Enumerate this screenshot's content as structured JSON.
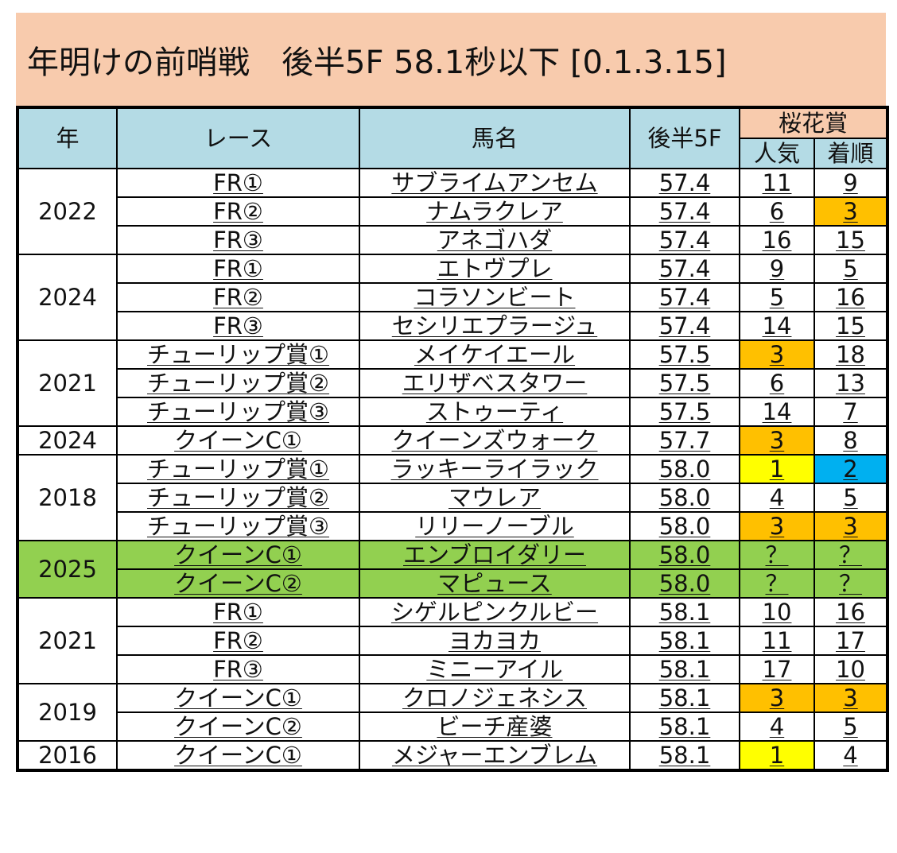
{
  "title": "年明けの前哨戦　後半5F 58.1秒以下 [0.1.3.15]",
  "headers": {
    "year": "年",
    "race": "レース",
    "horse": "馬名",
    "last5f": "後半5F",
    "sakura": "桜花賞",
    "popularity": "人気",
    "finish": "着順"
  },
  "colors": {
    "title_bg": "#f8cbad",
    "header_bg": "#b4dbe5",
    "highlight_green": "#92d050",
    "orange": "#ffc000",
    "yellow": "#ffff00",
    "blue": "#00b0f0"
  },
  "groups": [
    {
      "year": "2022",
      "highlight": false,
      "rows": [
        {
          "race": "FR①",
          "horse": "サブライムアンセム",
          "time": "57.4",
          "pop": "11",
          "finish": "9",
          "pop_color": "",
          "finish_color": ""
        },
        {
          "race": "FR②",
          "horse": "ナムラクレア",
          "time": "57.4",
          "pop": "6",
          "finish": "3",
          "pop_color": "",
          "finish_color": "orange"
        },
        {
          "race": "FR③",
          "horse": "アネゴハダ",
          "time": "57.4",
          "pop": "16",
          "finish": "15",
          "pop_color": "",
          "finish_color": ""
        }
      ]
    },
    {
      "year": "2024",
      "highlight": false,
      "rows": [
        {
          "race": "FR①",
          "horse": "エトヴプレ",
          "time": "57.4",
          "pop": "9",
          "finish": "5",
          "pop_color": "",
          "finish_color": ""
        },
        {
          "race": "FR②",
          "horse": "コラソンビート",
          "time": "57.4",
          "pop": "5",
          "finish": "16",
          "pop_color": "",
          "finish_color": ""
        },
        {
          "race": "FR③",
          "horse": "セシリエプラージュ",
          "time": "57.4",
          "pop": "14",
          "finish": "15",
          "pop_color": "",
          "finish_color": ""
        }
      ]
    },
    {
      "year": "2021",
      "highlight": false,
      "rows": [
        {
          "race": "チューリップ賞①",
          "horse": "メイケイエール",
          "time": "57.5",
          "pop": "3",
          "finish": "18",
          "pop_color": "orange",
          "finish_color": ""
        },
        {
          "race": "チューリップ賞②",
          "horse": "エリザベスタワー",
          "time": "57.5",
          "pop": "6",
          "finish": "13",
          "pop_color": "",
          "finish_color": ""
        },
        {
          "race": "チューリップ賞③",
          "horse": "ストゥーティ",
          "time": "57.5",
          "pop": "14",
          "finish": "7",
          "pop_color": "",
          "finish_color": ""
        }
      ]
    },
    {
      "year": "2024",
      "highlight": false,
      "rows": [
        {
          "race": "クイーンC①",
          "horse": "クイーンズウォーク",
          "time": "57.7",
          "pop": "3",
          "finish": "8",
          "pop_color": "orange",
          "finish_color": ""
        }
      ]
    },
    {
      "year": "2018",
      "highlight": false,
      "rows": [
        {
          "race": "チューリップ賞①",
          "horse": "ラッキーライラック",
          "time": "58.0",
          "pop": "1",
          "finish": "2",
          "pop_color": "yellow",
          "finish_color": "blue"
        },
        {
          "race": "チューリップ賞②",
          "horse": "マウレア",
          "time": "58.0",
          "pop": "4",
          "finish": "5",
          "pop_color": "",
          "finish_color": ""
        },
        {
          "race": "チューリップ賞③",
          "horse": "リリーノーブル",
          "time": "58.0",
          "pop": "3",
          "finish": "3",
          "pop_color": "orange",
          "finish_color": "orange"
        }
      ]
    },
    {
      "year": "2025",
      "highlight": true,
      "rows": [
        {
          "race": "クイーンC①",
          "horse": "エンブロイダリー",
          "time": "58.0",
          "pop": "？",
          "finish": "？",
          "pop_color": "",
          "finish_color": ""
        },
        {
          "race": "クイーンC②",
          "horse": "マピュース",
          "time": "58.0",
          "pop": "？",
          "finish": "？",
          "pop_color": "",
          "finish_color": ""
        }
      ]
    },
    {
      "year": "2021",
      "highlight": false,
      "rows": [
        {
          "race": "FR①",
          "horse": "シゲルピンクルビー",
          "time": "58.1",
          "pop": "10",
          "finish": "16",
          "pop_color": "",
          "finish_color": ""
        },
        {
          "race": "FR②",
          "horse": "ヨカヨカ",
          "time": "58.1",
          "pop": "11",
          "finish": "17",
          "pop_color": "",
          "finish_color": ""
        },
        {
          "race": "FR③",
          "horse": "ミニーアイル",
          "time": "58.1",
          "pop": "17",
          "finish": "10",
          "pop_color": "",
          "finish_color": ""
        }
      ]
    },
    {
      "year": "2019",
      "highlight": false,
      "rows": [
        {
          "race": "クイーンC①",
          "horse": "クロノジェネシス",
          "time": "58.1",
          "pop": "3",
          "finish": "3",
          "pop_color": "orange",
          "finish_color": "orange"
        },
        {
          "race": "クイーンC②",
          "horse": "ビーチ産婆",
          "time": "58.1",
          "pop": "4",
          "finish": "5",
          "pop_color": "",
          "finish_color": ""
        }
      ]
    },
    {
      "year": "2016",
      "highlight": false,
      "rows": [
        {
          "race": "クイーンC①",
          "horse": "メジャーエンブレム",
          "time": "58.1",
          "pop": "1",
          "finish": "4",
          "pop_color": "yellow",
          "finish_color": ""
        }
      ]
    }
  ]
}
